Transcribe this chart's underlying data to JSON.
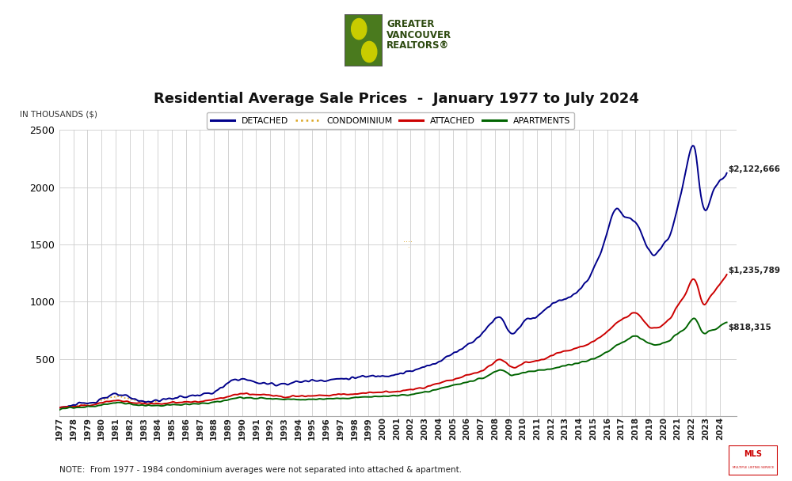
{
  "title": "Residential Average Sale Prices  -  January 1977 to July 2024",
  "ylabel": "IN THOUSANDS ($)",
  "note": "NOTE:  From 1977 - 1984 condominium averages were not separated into attached & apartment.",
  "ylim": [
    0,
    2500
  ],
  "yticks": [
    0,
    500,
    1000,
    1500,
    2000,
    2500
  ],
  "end_labels": {
    "detached": "$2,122,666",
    "attached": "$1,235,789",
    "apartments": "$818,315"
  },
  "colors": {
    "detached": "#00008B",
    "condominium": "#DAA520",
    "attached": "#CC0000",
    "apartments": "#006400"
  },
  "legend_labels": [
    "DETACHED",
    "CONDOMINIUM",
    "ATTACHED",
    "APARTMENTS"
  ],
  "background_color": "#FFFFFF",
  "grid_color": "#CCCCCC",
  "title_fontsize": 13,
  "label_fontsize": 7.5
}
